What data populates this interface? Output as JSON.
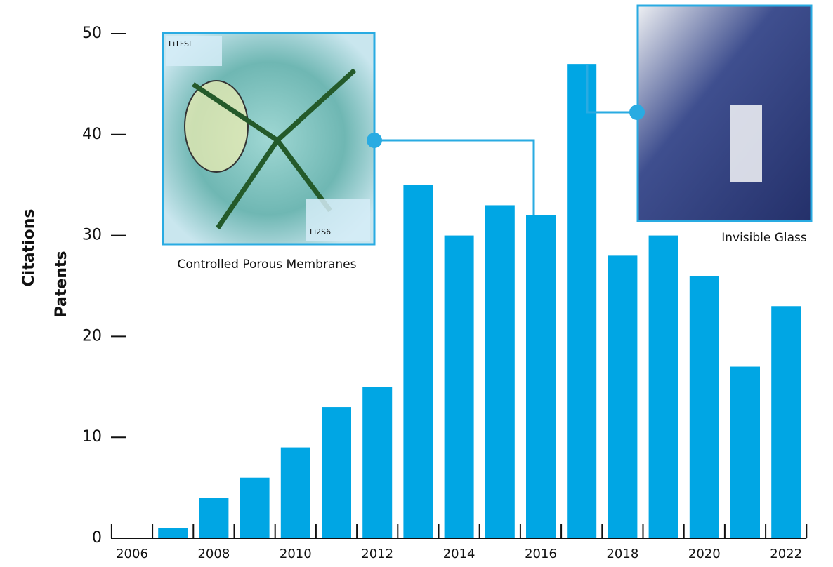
{
  "chart_data": {
    "type": "bar",
    "y_label": "Patents",
    "y2_label": "Citations",
    "categories": [
      "2006",
      null,
      "2008",
      null,
      "2010",
      null,
      "2012",
      null,
      "2014",
      null,
      "2016",
      null,
      "2018",
      null,
      "2020",
      null,
      "2022"
    ],
    "values": [
      0,
      1,
      4,
      6,
      9,
      13,
      15,
      35,
      30,
      33,
      32,
      47,
      28,
      30,
      26,
      17,
      23
    ],
    "color": "#00a6e4",
    "ylim": [
      0,
      50
    ],
    "yticks": [
      0,
      10,
      20,
      30,
      40,
      50
    ],
    "annotations": [
      {
        "text": "Controlled Porous Membranes",
        "inner_labels": [
          "LiTFSI",
          "Li2S6"
        ]
      },
      {
        "text": "Invisible Glass"
      }
    ]
  }
}
